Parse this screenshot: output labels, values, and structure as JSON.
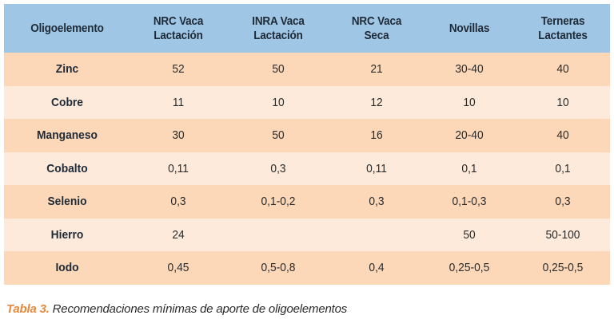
{
  "table": {
    "headers": [
      "Oligoelemento",
      "NRC Vaca\nLactación",
      "INRA Vaca\nLactación",
      "NRC Vaca\nSeca",
      "Novillas",
      "Terneras\nLactantes"
    ],
    "rows": [
      [
        "Zinc",
        "52",
        "50",
        "21",
        "30-40",
        "40"
      ],
      [
        "Cobre",
        "11",
        "10",
        "12",
        "10",
        "10"
      ],
      [
        "Manganeso",
        "30",
        "50",
        "16",
        "20-40",
        "40"
      ],
      [
        "Cobalto",
        "0,11",
        "0,3",
        "0,11",
        "0,1",
        "0,1"
      ],
      [
        "Selenio",
        "0,3",
        "0,1-0,2",
        "0,3",
        "0,1-0,3",
        "0,3"
      ],
      [
        "Hierro",
        "24",
        "",
        "",
        "50",
        "50-100"
      ],
      [
        "Iodo",
        "0,45",
        "0,5-0,8",
        "0,4",
        "0,25-0,5",
        "0,25-0,5"
      ]
    ]
  },
  "caption": {
    "label": "Tabla 3.",
    "text": "Recomendaciones mínimas de aporte de oligoelementos"
  },
  "colors": {
    "header_bg": "#9fc6e4",
    "row_dark": "#fcd8b9",
    "row_light": "#fdeadb",
    "caption_label": "#e8883a"
  }
}
